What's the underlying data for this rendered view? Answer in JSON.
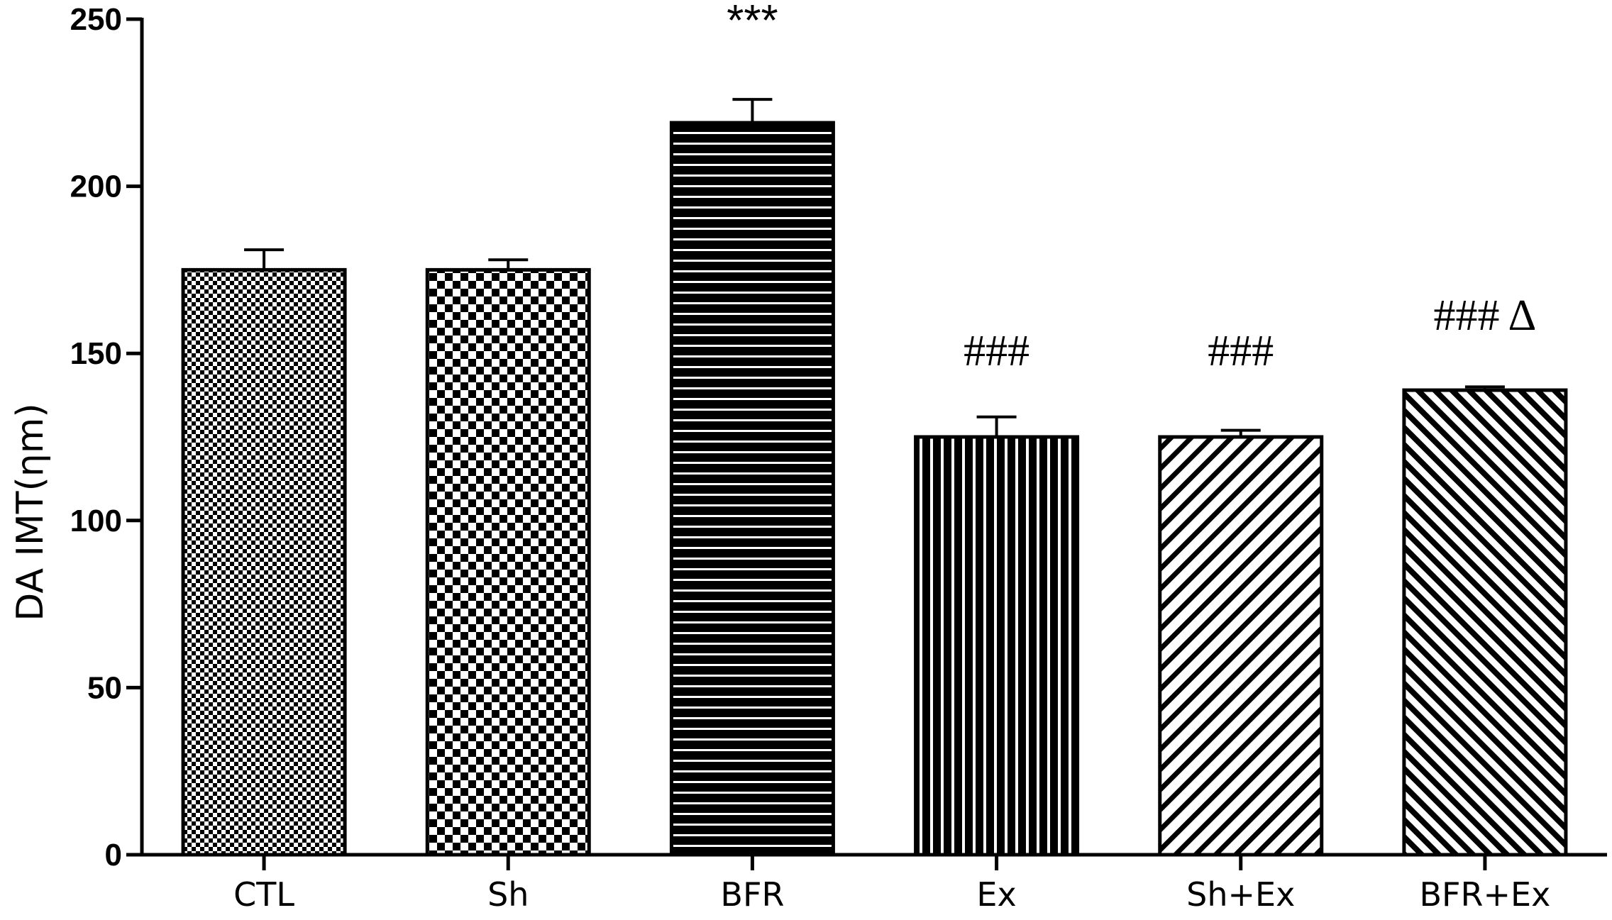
{
  "chart_data": {
    "type": "bar",
    "title": "",
    "xlabel": "",
    "ylabel": "DA IMT(ηm)",
    "ylim": [
      0,
      250
    ],
    "yticks": [
      0,
      50,
      100,
      150,
      200,
      250
    ],
    "grid": false,
    "categories": [
      "CTL",
      "Sh",
      "BFR",
      "Ex",
      "Sh+Ex",
      "BFR+Ex"
    ],
    "values": [
      175,
      175,
      219,
      125,
      125,
      139
    ],
    "errors": [
      6,
      3,
      7,
      6,
      2,
      1
    ],
    "patterns": [
      "fine-checker",
      "checker",
      "horizontal-lines",
      "vertical-lines",
      "diagonal-lines",
      "diagonal-lines-dense"
    ],
    "annotations": [
      "",
      "",
      "***",
      "###",
      "###",
      "### Δ"
    ],
    "colors": {
      "fill": "#000000",
      "background": "#ffffff",
      "axis": "#000000"
    }
  }
}
